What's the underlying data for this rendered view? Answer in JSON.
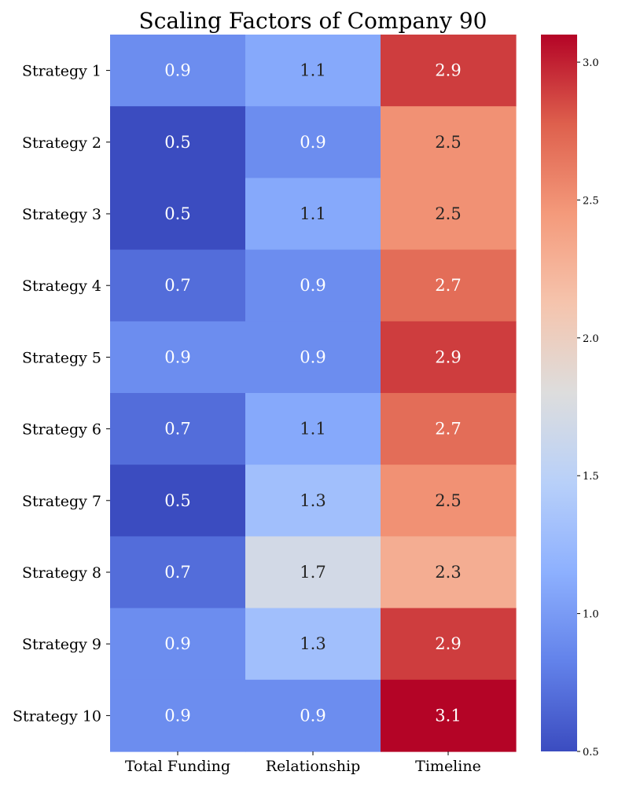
{
  "chart_data": {
    "type": "heatmap",
    "title": "Scaling Factors of Company 90",
    "xlabel": "",
    "ylabel": "",
    "columns": [
      "Total Funding",
      "Relationship",
      "Timeline"
    ],
    "rows": [
      "Strategy 1",
      "Strategy 2",
      "Strategy 3",
      "Strategy 4",
      "Strategy 5",
      "Strategy 6",
      "Strategy 7",
      "Strategy 8",
      "Strategy 9",
      "Strategy 10"
    ],
    "values": [
      [
        0.9,
        1.1,
        2.9
      ],
      [
        0.5,
        0.9,
        2.5
      ],
      [
        0.5,
        1.1,
        2.5
      ],
      [
        0.7,
        0.9,
        2.7
      ],
      [
        0.9,
        0.9,
        2.9
      ],
      [
        0.7,
        1.1,
        2.7
      ],
      [
        0.5,
        1.3,
        2.5
      ],
      [
        0.7,
        1.7,
        2.3
      ],
      [
        0.9,
        1.3,
        2.9
      ],
      [
        0.9,
        0.9,
        3.1
      ]
    ],
    "value_labels": [
      [
        "0.9",
        "1.1",
        "2.9"
      ],
      [
        "0.5",
        "0.9",
        "2.5"
      ],
      [
        "0.5",
        "1.1",
        "2.5"
      ],
      [
        "0.7",
        "0.9",
        "2.7"
      ],
      [
        "0.9",
        "0.9",
        "2.9"
      ],
      [
        "0.7",
        "1.1",
        "2.7"
      ],
      [
        "0.5",
        "1.3",
        "2.5"
      ],
      [
        "0.7",
        "1.7",
        "2.3"
      ],
      [
        "0.9",
        "1.3",
        "2.9"
      ],
      [
        "0.9",
        "0.9",
        "3.1"
      ]
    ],
    "colormap": "coolwarm",
    "vmin": 0.5,
    "vmax": 3.1,
    "colorbar": {
      "ticks": [
        0.5,
        1.0,
        1.5,
        2.0,
        2.5,
        3.0
      ],
      "tick_labels": [
        "0.5",
        "1.0",
        "1.5",
        "2.0",
        "2.5",
        "3.0"
      ]
    }
  }
}
